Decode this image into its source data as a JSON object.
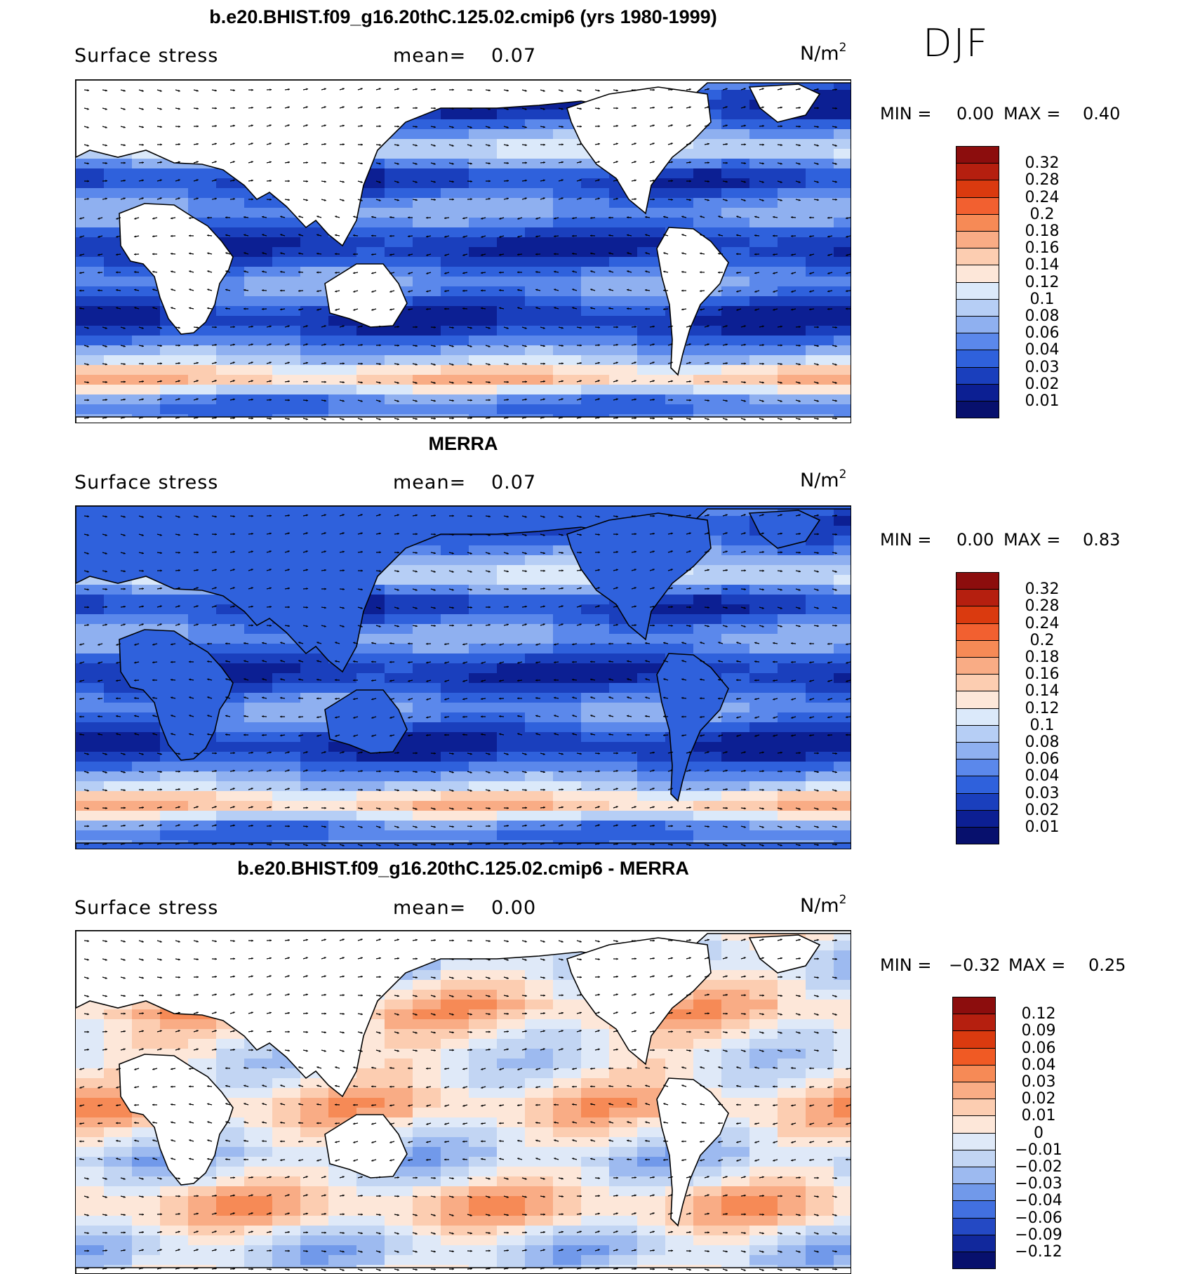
{
  "season": "DJF",
  "chart_data": [
    {
      "type": "heatmap",
      "title": "b.e20.BHIST.f09_g16.20thC.125.02.cmip6 (yrs 1980-1999)",
      "variable": "Surface stress",
      "mean_label": "mean=",
      "mean": "0.07",
      "units_base": "N/m",
      "units_exp": "2",
      "min_label": "MIN =",
      "min": "0.00",
      "max_label": "MAX =",
      "max": "0.40",
      "levels": [
        "0.32",
        "0.28",
        "0.24",
        "0.2",
        "0.18",
        "0.16",
        "0.14",
        "0.12",
        "0.1",
        "0.08",
        "0.06",
        "0.04",
        "0.03",
        "0.02",
        "0.01"
      ],
      "colors": [
        "#8c0d0d",
        "#b51f0f",
        "#da3a0f",
        "#f26030",
        "#f68a56",
        "#f9ac85",
        "#fccdb1",
        "#fde7d9",
        "#dbe9fa",
        "#b6cef5",
        "#8fb0f0",
        "#5b88eb",
        "#2f61dc",
        "#1a3fbd",
        "#0c1f93",
        "#07106d"
      ]
    },
    {
      "type": "heatmap",
      "title": "MERRA",
      "variable": "Surface stress",
      "mean_label": "mean=",
      "mean": "0.07",
      "units_base": "N/m",
      "units_exp": "2",
      "min_label": "MIN =",
      "min": "0.00",
      "max_label": "MAX =",
      "max": "0.83",
      "levels": [
        "0.32",
        "0.28",
        "0.24",
        "0.2",
        "0.18",
        "0.16",
        "0.14",
        "0.12",
        "0.1",
        "0.08",
        "0.06",
        "0.04",
        "0.03",
        "0.02",
        "0.01"
      ],
      "colors": [
        "#8c0d0d",
        "#b51f0f",
        "#da3a0f",
        "#f26030",
        "#f68a56",
        "#f9ac85",
        "#fccdb1",
        "#fde7d9",
        "#dbe9fa",
        "#b6cef5",
        "#8fb0f0",
        "#5b88eb",
        "#2f61dc",
        "#1a3fbd",
        "#0c1f93",
        "#07106d"
      ]
    },
    {
      "type": "heatmap",
      "title": "b.e20.BHIST.f09_g16.20thC.125.02.cmip6 - MERRA",
      "variable": "Surface stress",
      "mean_label": "mean=",
      "mean": "0.00",
      "units_base": "N/m",
      "units_exp": "2",
      "min_label": "MIN =",
      "min": "−0.32",
      "max_label": "MAX =",
      "max": "0.25",
      "levels": [
        "0.12",
        "0.09",
        "0.06",
        "0.04",
        "0.03",
        "0.02",
        "0.01",
        "0",
        "−0.01",
        "−0.02",
        "−0.03",
        "−0.04",
        "−0.06",
        "−0.09",
        "−0.12"
      ],
      "colors": [
        "#8c0d0d",
        "#b51f0f",
        "#da3a0f",
        "#f05a24",
        "#f68a56",
        "#f9ac85",
        "#fccdb1",
        "#fde7d9",
        "#dfe9f8",
        "#c2d5f3",
        "#9dbaf0",
        "#7199ea",
        "#4270e0",
        "#2449c4",
        "#11289c",
        "#07106d"
      ]
    }
  ]
}
